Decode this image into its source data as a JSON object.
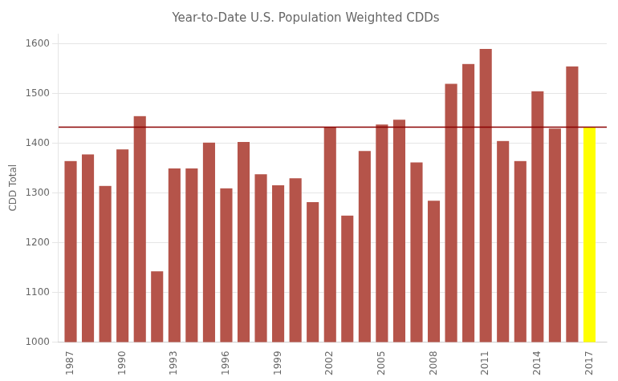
{
  "chart_data": {
    "type": "bar",
    "title": "Year-to-Date U.S. Population Weighted CDDs",
    "ylabel": "CDD Total",
    "x": [
      1987,
      1988,
      1989,
      1990,
      1991,
      1992,
      1993,
      1994,
      1995,
      1996,
      1997,
      1998,
      1999,
      2000,
      2001,
      2002,
      2003,
      2004,
      2005,
      2006,
      2007,
      2008,
      2009,
      2010,
      2011,
      2012,
      2013,
      2014,
      2015,
      2016,
      2017
    ],
    "values": [
      1365,
      1378,
      1315,
      1388,
      1455,
      1143,
      1350,
      1350,
      1402,
      1310,
      1403,
      1338,
      1316,
      1330,
      1282,
      1432,
      1255,
      1385,
      1438,
      1448,
      1362,
      1285,
      1520,
      1560,
      1590,
      1405,
      1365,
      1505,
      1430,
      1555,
      1432
    ],
    "colors": [
      "#b5544a",
      "#b5544a",
      "#b5544a",
      "#b5544a",
      "#b5544a",
      "#b5544a",
      "#b5544a",
      "#b5544a",
      "#b5544a",
      "#b5544a",
      "#b5544a",
      "#b5544a",
      "#b5544a",
      "#b5544a",
      "#b5544a",
      "#b5544a",
      "#b5544a",
      "#b5544a",
      "#b5544a",
      "#b5544a",
      "#b5544a",
      "#b5544a",
      "#b5544a",
      "#b5544a",
      "#b5544a",
      "#b5544a",
      "#b5544a",
      "#b5544a",
      "#b5544a",
      "#b5544a",
      "#ffff00"
    ],
    "mean_line": {
      "value": 1432,
      "color": "#8b0000"
    },
    "xlim": [
      1986.3,
      2018.0
    ],
    "xticks": [
      1987,
      1990,
      1993,
      1996,
      1999,
      2002,
      2005,
      2008,
      2011,
      2014,
      2017
    ],
    "ylim": [
      1000,
      1620
    ],
    "yticks": [
      1000,
      1100,
      1200,
      1300,
      1400,
      1500,
      1600
    ],
    "grid": "y"
  }
}
